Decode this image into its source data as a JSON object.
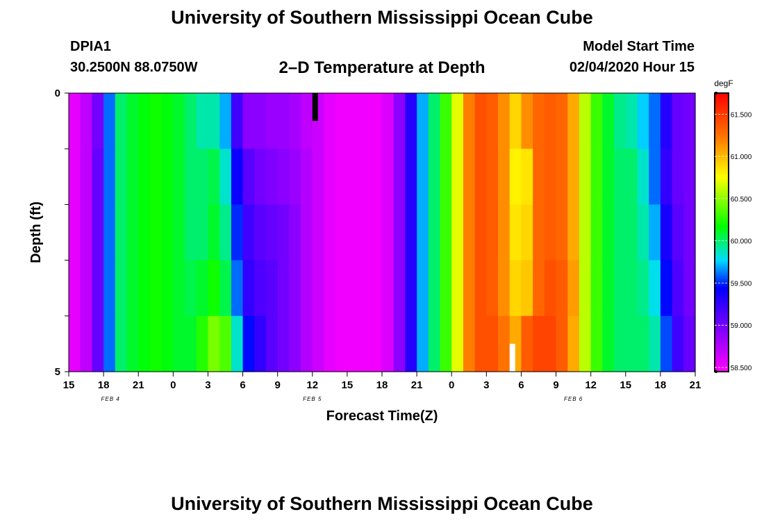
{
  "header": {
    "title": "University of Southern Mississippi Ocean Cube",
    "station_id": "DPIA1",
    "station_location": "30.2500N 88.0750W",
    "plot_title": "2–D Temperature at Depth",
    "run_label": "Model Start Time",
    "run_value": "02/04/2020 Hour 15"
  },
  "footer": {
    "title": "University of Southern Mississippi Ocean Cube"
  },
  "chart_data": {
    "type": "heatmap",
    "xlabel": "Forecast Time(Z)",
    "ylabel": "Depth (ft)",
    "x_tick_labels": [
      "15",
      "18",
      "21",
      "0",
      "3",
      "6",
      "9",
      "12",
      "15",
      "18",
      "21",
      "0",
      "3",
      "6",
      "9",
      "12",
      "15",
      "18",
      "21"
    ],
    "date_labels": [
      {
        "text": "FEB 4",
        "at_tick": 1.2
      },
      {
        "text": "FEB 5",
        "at_tick": 7.0
      },
      {
        "text": "FEB 6",
        "at_tick": 14.5
      }
    ],
    "y_tick_labels": [
      "0",
      "5"
    ],
    "ylim": [
      0,
      5
    ],
    "colorbar": {
      "units": "degF",
      "range": [
        58.45,
        61.75
      ],
      "tick_labels": [
        "58.500",
        "59.000",
        "59.500",
        "60.000",
        "60.500",
        "61.000",
        "61.500"
      ],
      "tick_values": [
        58.5,
        59.0,
        59.5,
        60.0,
        60.5,
        61.0,
        61.5
      ]
    },
    "hours": 54,
    "depth_levels": 5,
    "temperature_profile": [
      58.55,
      58.7,
      59.05,
      59.6,
      60.0,
      60.1,
      60.15,
      60.2,
      60.15,
      60.1,
      60.0,
      60.0,
      60.05,
      59.9,
      59.5,
      59.25,
      59.2,
      59.1,
      59.0,
      58.9,
      58.75,
      58.65,
      58.55,
      58.5,
      58.5,
      58.5,
      58.5,
      58.6,
      58.9,
      59.3,
      59.7,
      60.0,
      60.3,
      60.7,
      61.2,
      61.4,
      61.35,
      61.15,
      60.9,
      61.15,
      61.3,
      61.35,
      61.3,
      61.05,
      60.6,
      60.3,
      60.1,
      60.0,
      60.0,
      59.9,
      59.7,
      59.35,
      59.1,
      59.0,
      58.95
    ],
    "depth_offsets": [
      [
        0,
        0,
        -0.05,
        0,
        0,
        0,
        0,
        0,
        0,
        0,
        0,
        -0.1,
        -0.15,
        -0.2,
        -0.3,
        -0.35,
        -0.3,
        -0.25,
        -0.15,
        -0.1,
        -0.05,
        0,
        0,
        0,
        0,
        0,
        0,
        0,
        0,
        0,
        0,
        0,
        0,
        0,
        0,
        0,
        0,
        0,
        0,
        0,
        0,
        0,
        0,
        0,
        0,
        0,
        0,
        -0.05,
        -0.1,
        -0.15,
        -0.1,
        -0.05,
        -0.05,
        0,
        0
      ],
      [
        0,
        0,
        0,
        0,
        0,
        0,
        0,
        0,
        0,
        0,
        0,
        0,
        0,
        -0.05,
        -0.1,
        -0.15,
        -0.2,
        -0.15,
        -0.1,
        -0.05,
        0,
        0,
        0,
        0,
        0,
        0,
        0,
        0,
        0,
        0,
        0,
        0,
        0,
        0,
        0,
        0,
        0,
        0,
        -0.1,
        -0.3,
        0,
        0,
        0,
        0,
        0,
        0,
        0,
        0,
        0,
        -0.05,
        -0.1,
        -0.1,
        -0.05,
        0,
        0
      ],
      [
        0,
        0,
        0,
        0,
        0,
        0,
        0,
        0,
        0,
        0,
        0,
        0,
        0.05,
        0.05,
        0,
        -0.05,
        -0.1,
        -0.05,
        0,
        0,
        0,
        0,
        0,
        0,
        0,
        0,
        0,
        0,
        0,
        0,
        0,
        0,
        0,
        0,
        0,
        0,
        0,
        0,
        -0.05,
        -0.25,
        0,
        0,
        0,
        0,
        0,
        0,
        0,
        0,
        0,
        0,
        0,
        0,
        0,
        0,
        0
      ],
      [
        0,
        0,
        0,
        0,
        0,
        0,
        0,
        0,
        0,
        0,
        0.05,
        0.1,
        0.15,
        0.15,
        0.1,
        0,
        -0.05,
        0,
        0,
        0,
        0,
        0,
        0,
        0,
        0,
        0,
        0,
        0,
        0,
        0,
        0,
        0,
        0,
        0,
        0,
        0,
        0,
        0,
        0,
        -0.2,
        0,
        0.05,
        0.05,
        0.05,
        0,
        0,
        0,
        0,
        0,
        0.05,
        0.1,
        0.1,
        0.05,
        0,
        0
      ],
      [
        0,
        0,
        0,
        0,
        0,
        0,
        0,
        0,
        0,
        0,
        0.1,
        0.25,
        0.4,
        0.45,
        0.35,
        0.2,
        0.05,
        0,
        0,
        0,
        0,
        0,
        0,
        0,
        0,
        0,
        0,
        0,
        0,
        0,
        0,
        0,
        0,
        0,
        0,
        0,
        0.05,
        0.1,
        0.15,
        0.2,
        0.15,
        0.1,
        0.05,
        0,
        0,
        0,
        0,
        0,
        0,
        0.1,
        0.2,
        0.2,
        0.1,
        0.05,
        0
      ]
    ],
    "markers": [
      {
        "name": "black-marker",
        "color": "#000000",
        "hour": 21,
        "depth_from": 0,
        "depth_to": 0.5
      },
      {
        "name": "white-marker",
        "color": "#ffffff",
        "hour": 38,
        "depth_from": 4.5,
        "depth_to": 5
      }
    ]
  }
}
